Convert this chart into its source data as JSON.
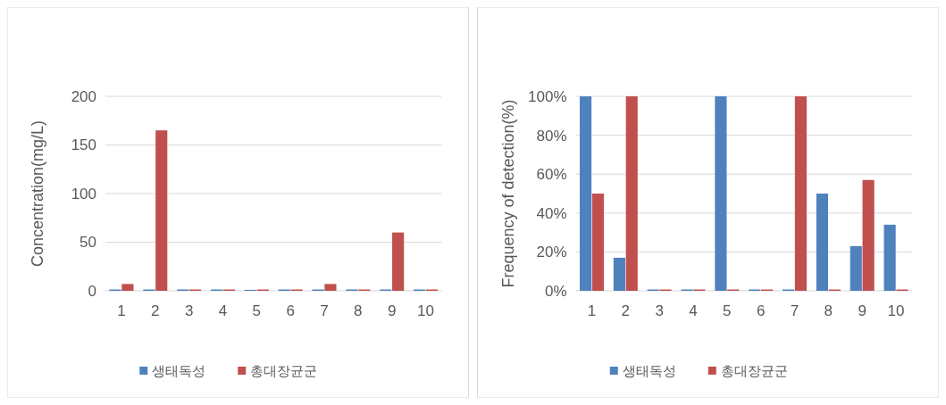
{
  "chart_data": [
    {
      "type": "bar",
      "ylabel": "Concentration(mg/L)",
      "categories": [
        "1",
        "2",
        "3",
        "4",
        "5",
        "6",
        "7",
        "8",
        "9",
        "10"
      ],
      "series": [
        {
          "name": "생태독성",
          "color": "#4f81bd",
          "values": [
            0,
            0,
            0,
            0,
            1,
            0,
            0,
            0,
            0,
            0
          ]
        },
        {
          "name": "총대장균군",
          "color": "#c0504d",
          "values": [
            7,
            165,
            0,
            0,
            0,
            0,
            7,
            0,
            60,
            0
          ]
        }
      ],
      "ylim": [
        0,
        200
      ],
      "yticks": [
        0,
        50,
        100,
        150,
        200
      ],
      "grid": "y",
      "legend": "bottom"
    },
    {
      "type": "bar",
      "ylabel": "Frequency of detection(%)",
      "categories": [
        "1",
        "2",
        "3",
        "4",
        "5",
        "6",
        "7",
        "8",
        "9",
        "10"
      ],
      "series": [
        {
          "name": "생태독성",
          "color": "#4f81bd",
          "values": [
            100,
            17,
            0,
            0,
            100,
            0,
            0,
            50,
            23,
            34
          ]
        },
        {
          "name": "총대장균군",
          "color": "#c0504d",
          "values": [
            50,
            100,
            0,
            0,
            0,
            0,
            100,
            0,
            57,
            0
          ]
        }
      ],
      "ylim": [
        0,
        100
      ],
      "yticks": [
        {
          "value": 0,
          "label": "0%"
        },
        {
          "value": 20,
          "label": "20%"
        },
        {
          "value": 40,
          "label": "40%"
        },
        {
          "value": 60,
          "label": "60%"
        },
        {
          "value": 80,
          "label": "80%"
        },
        {
          "value": 100,
          "label": "100%"
        }
      ],
      "grid": "y",
      "legend": "bottom"
    }
  ]
}
